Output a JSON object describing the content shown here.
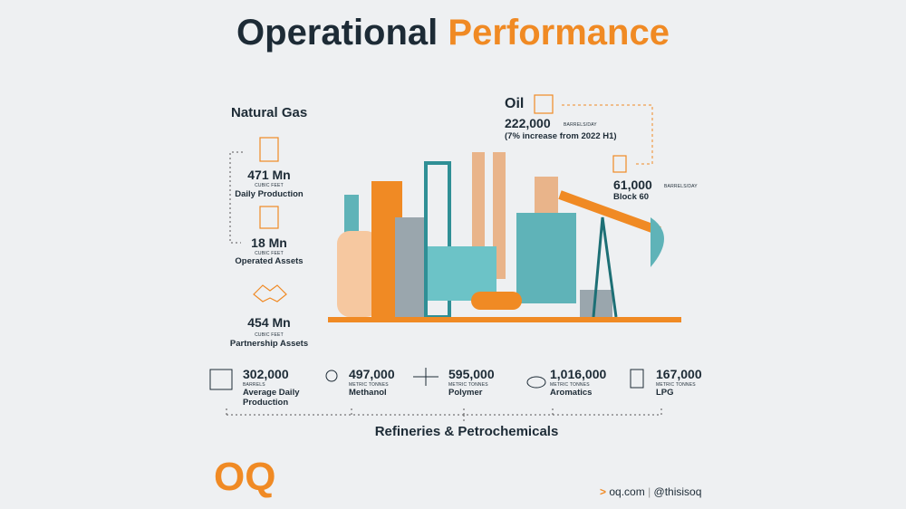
{
  "header": {
    "title_start": "Operational",
    "title_end": "Performance"
  },
  "natural_gas": {
    "title": "Natural Gas",
    "items": [
      {
        "value": "471 Mn",
        "unit": "CUBIC FEET",
        "label": "Daily Production"
      },
      {
        "value": "18 Mn",
        "unit": "CUBIC FEET",
        "label": "Operated Assets"
      },
      {
        "value": "454 Mn",
        "unit": "CUBIC FEET",
        "label": "Partnership Assets"
      }
    ]
  },
  "oil": {
    "title": "Oil",
    "value": "222,000",
    "unit": "BARRELS/DAY",
    "note": "(7% increase from 2022 H1)",
    "block": {
      "value": "61,000",
      "unit": "BARRELS/DAY",
      "label": "Block 60"
    }
  },
  "refineries": {
    "title": "Refineries & Petrochemicals",
    "items": [
      {
        "value": "302,000",
        "unit": "BARRELS",
        "label": "Average Daily Production"
      },
      {
        "value": "497,000",
        "unit": "METRIC TONNES",
        "label": "Methanol"
      },
      {
        "value": "595,000",
        "unit": "METRIC TONNES",
        "label": "Polymer"
      },
      {
        "value": "1,016,000",
        "unit": "METRIC TONNES",
        "label": "Aromatics"
      },
      {
        "value": "167,000",
        "unit": "METRIC TONNES",
        "label": "LPG"
      }
    ]
  },
  "footer": {
    "logo": "OQ",
    "website": "oq.com",
    "handle": "@thisisoq"
  }
}
